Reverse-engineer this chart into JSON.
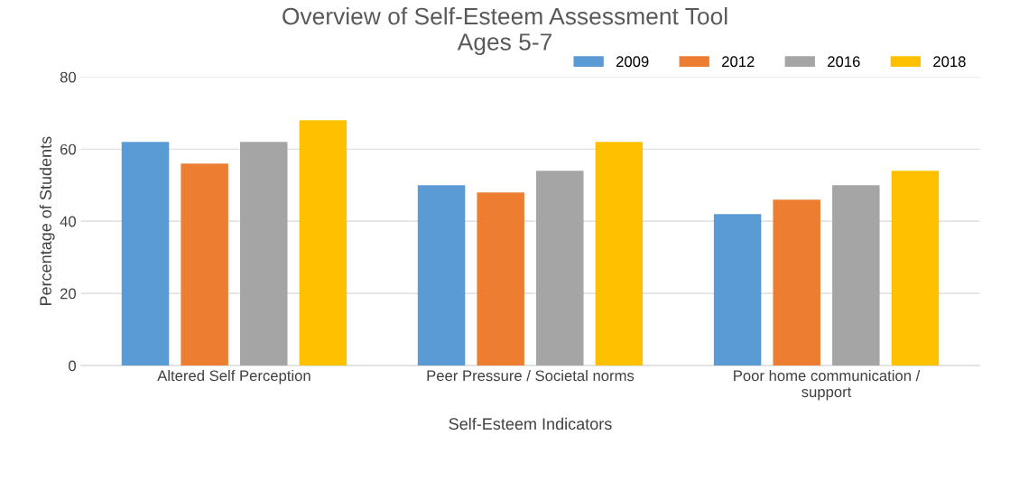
{
  "chart_data": {
    "type": "bar",
    "title": "Overview of Self-Esteem Assessment Tool\nAges 5-7",
    "categories": [
      "Altered Self Perception",
      "Peer Pressure / Societal norms",
      "Poor home communication /\nsupport"
    ],
    "series": [
      {
        "name": "2009",
        "color": "#5b9bd5",
        "values": [
          62,
          50,
          42
        ]
      },
      {
        "name": "2012",
        "color": "#ed7d31",
        "values": [
          56,
          48,
          46
        ]
      },
      {
        "name": "2016",
        "color": "#a5a5a5",
        "values": [
          62,
          54,
          50
        ]
      },
      {
        "name": "2018",
        "color": "#ffc000",
        "values": [
          68,
          62,
          54
        ]
      }
    ],
    "xlabel": "Self-Esteem Indicators",
    "ylabel": "Percentage of Students",
    "ylim": [
      0,
      80
    ],
    "yticks": [
      0,
      20,
      40,
      60,
      80
    ],
    "grid": "y",
    "legend": "top right"
  }
}
